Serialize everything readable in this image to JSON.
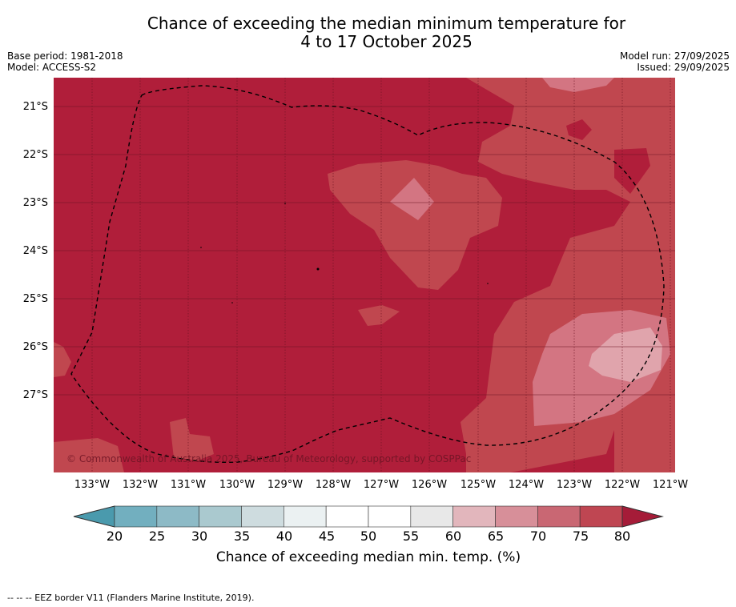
{
  "title": {
    "line1": "Chance of exceeding the median minimum temperature for",
    "line2": "4 to 17 October 2025"
  },
  "meta": {
    "base_period": "Base period: 1981-2018",
    "model": "Model: ACCESS-S2",
    "model_run": "Model run: 27/09/2025",
    "issued": "Issued: 29/09/2025"
  },
  "map": {
    "copyright": "© Commonwealth of Australia 2025, Bureau of Meteorology, supported by COSPPac",
    "lat_labels": [
      "21°S",
      "22°S",
      "23°S",
      "24°S",
      "25°S",
      "26°S",
      "27°S"
    ],
    "lon_labels": [
      "133°W",
      "132°W",
      "131°W",
      "130°W",
      "129°W",
      "128°W",
      "127°W",
      "126°W",
      "125°W",
      "124°W",
      "123°W",
      "122°W",
      "121°W"
    ],
    "region_colors": {
      "above_80": "#b01e3a",
      "75_80": "#c0474f",
      "70_75": "#d37582"
    }
  },
  "colorbar": {
    "label": "Chance of exceeding median min. temp. (%)",
    "ticks": [
      "20",
      "25",
      "30",
      "35",
      "40",
      "45",
      "50",
      "55",
      "60",
      "65",
      "70",
      "75",
      "80"
    ],
    "colors": [
      "#72afbf",
      "#8dbac6",
      "#aac9cf",
      "#cedcdf",
      "#ebf1f2",
      "#ffffff",
      "#ffffff",
      "#e8e8e8",
      "#e2b6bc",
      "#d78f99",
      "#c96773",
      "#bf4652"
    ],
    "low_extend_color": "#4a9aad",
    "high_extend_color": "#a51c38"
  },
  "footnote": "--  --  -- EEZ border V11 (Flanders Marine Institute, 2019)."
}
